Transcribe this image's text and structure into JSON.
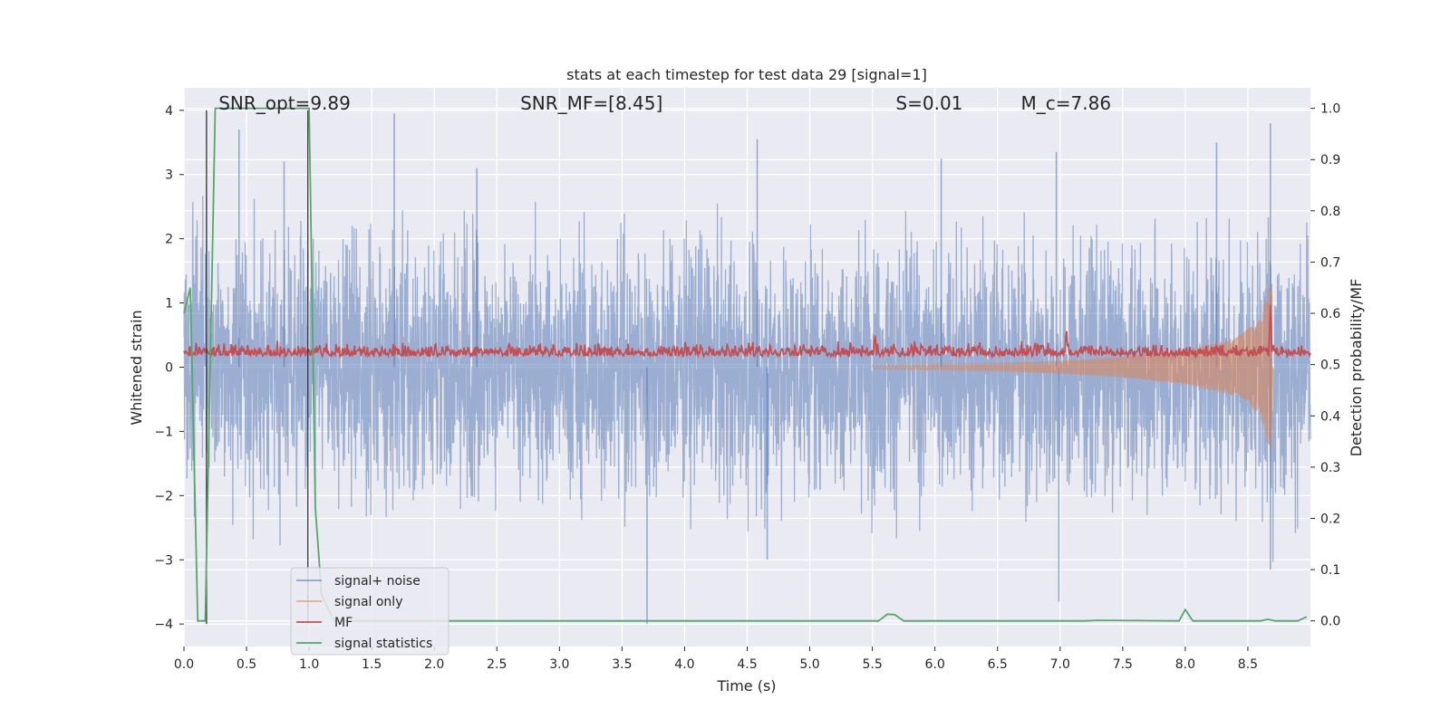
{
  "chart_data": {
    "type": "line",
    "title": "stats at each timestep for test data 29 [signal=1]",
    "xlabel": "Time (s)",
    "ylabel_left": "Whitened strain",
    "ylabel_right": "Detection probability/MF",
    "xlim": [
      0.0,
      9.0
    ],
    "ylim_left": [
      -4.35,
      4.35
    ],
    "ylim_right": [
      -0.05,
      1.04
    ],
    "x_ticks": [
      0.0,
      0.5,
      1.0,
      1.5,
      2.0,
      2.5,
      3.0,
      3.5,
      4.0,
      4.5,
      5.0,
      5.5,
      6.0,
      6.5,
      7.0,
      7.5,
      8.0,
      8.5
    ],
    "x_tick_labels": [
      "0.0",
      "0.5",
      "1.0",
      "1.5",
      "2.0",
      "2.5",
      "3.0",
      "3.5",
      "4.0",
      "4.5",
      "5.0",
      "5.5",
      "6.0",
      "6.5",
      "7.0",
      "7.5",
      "8.0",
      "8.5"
    ],
    "y_ticks_left": [
      -4,
      -3,
      -2,
      -1,
      0,
      1,
      2,
      3,
      4
    ],
    "y_tick_labels_left": [
      "−4",
      "−3",
      "−2",
      "−1",
      "0",
      "1",
      "2",
      "3",
      "4"
    ],
    "y_ticks_right": [
      0.0,
      0.1,
      0.2,
      0.3,
      0.4,
      0.5,
      0.6,
      0.7,
      0.8,
      0.9,
      1.0
    ],
    "y_tick_labels_right": [
      "0.0",
      "0.1",
      "0.2",
      "0.3",
      "0.4",
      "0.5",
      "0.6",
      "0.7",
      "0.8",
      "0.9",
      "1.0"
    ],
    "grid": true,
    "legend_placement": "lower-left",
    "annotations": [
      {
        "text": "SNR_opt=9.89",
        "x": 0.19,
        "y_right": 1.01
      },
      {
        "text": "SNR_MF=[8.45]",
        "x": 2.6,
        "y_right": 1.01
      },
      {
        "text": "S=0.01",
        "x": 5.6,
        "y_right": 1.01
      },
      {
        "text": "M_c=7.86",
        "x": 6.6,
        "y_right": 1.01
      }
    ],
    "vlines": [
      {
        "x": 0.18,
        "y0": -4.0,
        "y1": 4.0,
        "color": "#333333"
      },
      {
        "x": 0.99,
        "y0": -4.0,
        "y1": 4.0,
        "color": "#333333"
      }
    ],
    "series": [
      {
        "name": "signal+ noise",
        "color": "#4c72b0",
        "axis": "left",
        "style": "dense noise, typical envelope ±1.6, peaks to about ±3.9",
        "envelope_peaks": [
          {
            "x": 0.44,
            "y": 3.7
          },
          {
            "x": 0.8,
            "y": 3.2
          },
          {
            "x": 1.68,
            "y": 3.95
          },
          {
            "x": 2.34,
            "y": 3.1
          },
          {
            "x": 3.7,
            "y": -4.0
          },
          {
            "x": 4.58,
            "y": 3.55
          },
          {
            "x": 4.66,
            "y": -3.0
          },
          {
            "x": 6.05,
            "y": 3.25
          },
          {
            "x": 6.97,
            "y": 3.35
          },
          {
            "x": 6.99,
            "y": -3.65
          },
          {
            "x": 8.25,
            "y": 3.5
          },
          {
            "x": 8.68,
            "y": 3.8
          },
          {
            "x": 8.68,
            "y": -3.15
          }
        ]
      },
      {
        "name": "signal only",
        "color": "#dd8452",
        "axis": "left",
        "style": "chirp, amplitude grows from 5.5 s to a peak at 8.68 s then ends",
        "envelope": [
          {
            "x": 5.5,
            "amp": 0.03
          },
          {
            "x": 6.5,
            "amp": 0.06
          },
          {
            "x": 7.0,
            "amp": 0.1
          },
          {
            "x": 7.5,
            "amp": 0.16
          },
          {
            "x": 8.0,
            "amp": 0.27
          },
          {
            "x": 8.4,
            "amp": 0.45
          },
          {
            "x": 8.6,
            "amp": 0.75
          },
          {
            "x": 8.67,
            "amp": 1.3
          }
        ]
      },
      {
        "name": "MF",
        "color": "#c44e52",
        "axis": "right",
        "style": "noisy trace around 0.52, peak near 8.68 s",
        "base": 0.52,
        "peaks": [
          {
            "x": 7.05,
            "y": 0.575
          },
          {
            "x": 5.52,
            "y": 0.565
          },
          {
            "x": 8.68,
            "y": 0.63
          }
        ]
      },
      {
        "name": "signal statistics",
        "color": "#55a868",
        "axis": "right",
        "points": [
          [
            0.0,
            0.6
          ],
          [
            0.05,
            0.65
          ],
          [
            0.11,
            0.0
          ],
          [
            0.17,
            0.0
          ],
          [
            0.25,
            1.0
          ],
          [
            0.3,
            1.0
          ],
          [
            1.0,
            1.0
          ],
          [
            1.05,
            0.22
          ],
          [
            1.1,
            0.05
          ],
          [
            1.2,
            0.0
          ],
          [
            5.55,
            0.0
          ],
          [
            5.62,
            0.013
          ],
          [
            5.68,
            0.012
          ],
          [
            5.75,
            0.0
          ],
          [
            7.2,
            0.0
          ],
          [
            7.3,
            0.001
          ],
          [
            7.95,
            0.0
          ],
          [
            8.0,
            0.022
          ],
          [
            8.06,
            0.0
          ],
          [
            8.6,
            0.0
          ],
          [
            8.66,
            0.003
          ],
          [
            8.72,
            0.0
          ],
          [
            8.9,
            0.0
          ],
          [
            8.97,
            0.008
          ]
        ]
      }
    ]
  }
}
